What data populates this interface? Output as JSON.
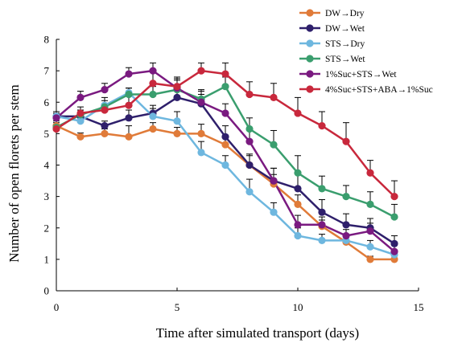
{
  "chart_data": {
    "type": "line",
    "title": "",
    "xlabel": "Time after simulated transport (days)",
    "ylabel": "Number of open florets per stem",
    "xlim": [
      0,
      15
    ],
    "ylim": [
      0,
      8
    ],
    "xticks": [
      0,
      5,
      10,
      15
    ],
    "yticks": [
      0,
      1,
      2,
      3,
      4,
      5,
      6,
      7,
      8
    ],
    "grid": false,
    "legend_position": "top-right",
    "error_bars": true,
    "series": [
      {
        "name": "DW→Dry",
        "color": "#E07B39",
        "x": [
          0,
          1,
          2,
          3,
          4,
          5,
          6,
          7,
          8,
          9,
          10,
          11,
          12,
          13,
          14
        ],
        "y": [
          5.25,
          4.9,
          5.0,
          4.9,
          5.15,
          5.0,
          5.0,
          4.65,
          4.0,
          3.4,
          2.75,
          2.05,
          1.55,
          1.0,
          1.0
        ],
        "err": [
          0.15,
          0.12,
          0.15,
          0.35,
          0.2,
          0.2,
          0.3,
          0.3,
          0.3,
          0.3,
          0.3,
          0.2,
          0.2,
          0.1,
          0.12
        ]
      },
      {
        "name": "DW→Wet",
        "color": "#2E1F6B",
        "x": [
          0,
          1,
          2,
          3,
          4,
          5,
          6,
          7,
          8,
          9,
          10,
          11,
          12,
          13,
          14
        ],
        "y": [
          5.55,
          5.55,
          5.25,
          5.5,
          5.65,
          6.15,
          5.95,
          4.9,
          4.0,
          3.5,
          3.25,
          2.5,
          2.1,
          2.0,
          1.5
        ],
        "err": [
          0.15,
          0.2,
          0.15,
          0.25,
          0.25,
          0.35,
          0.3,
          0.35,
          0.35,
          0.4,
          0.5,
          0.4,
          0.35,
          0.3,
          0.25
        ]
      },
      {
        "name": "STS→Dry",
        "color": "#6EB7DF",
        "x": [
          0,
          1,
          2,
          3,
          4,
          5,
          6,
          7,
          8,
          9,
          10,
          11,
          12,
          13,
          14
        ],
        "y": [
          5.55,
          5.4,
          5.9,
          6.3,
          5.55,
          5.4,
          4.4,
          4.0,
          3.15,
          2.5,
          1.75,
          1.6,
          1.6,
          1.4,
          1.15
        ],
        "err": [
          0.15,
          0.2,
          0.25,
          0.15,
          0.25,
          0.3,
          0.35,
          0.3,
          0.4,
          0.3,
          0.25,
          0.2,
          0.2,
          0.2,
          0.15
        ]
      },
      {
        "name": "STS→Wet",
        "color": "#3A9E6E",
        "x": [
          0,
          1,
          2,
          3,
          4,
          5,
          6,
          7,
          8,
          9,
          10,
          11,
          12,
          13,
          14
        ],
        "y": [
          5.2,
          5.6,
          5.85,
          6.25,
          6.25,
          6.4,
          6.1,
          6.5,
          5.15,
          4.65,
          3.75,
          3.25,
          3.0,
          2.75,
          2.35
        ],
        "err": [
          0.15,
          0.15,
          0.2,
          0.2,
          0.25,
          0.3,
          0.3,
          0.3,
          0.35,
          0.45,
          0.55,
          0.4,
          0.35,
          0.4,
          0.4
        ]
      },
      {
        "name": "1%Suc+STS→Wet",
        "color": "#7A1A80",
        "x": [
          0,
          1,
          2,
          3,
          4,
          5,
          6,
          7,
          8,
          9,
          10,
          11,
          12,
          13,
          14
        ],
        "y": [
          5.5,
          6.15,
          6.4,
          6.9,
          7.0,
          6.45,
          6.0,
          5.65,
          4.75,
          3.5,
          2.1,
          2.1,
          1.75,
          1.9,
          1.25
        ],
        "err": [
          0.15,
          0.2,
          0.2,
          0.2,
          0.25,
          0.3,
          0.35,
          0.3,
          0.4,
          0.4,
          0.3,
          0.25,
          0.2,
          0.25,
          0.2
        ]
      },
      {
        "name": "4%Suc+STS+ABA→1%Suc",
        "color": "#C8283C",
        "x": [
          0,
          1,
          2,
          3,
          4,
          5,
          6,
          7,
          8,
          9,
          10,
          11,
          12,
          13,
          14
        ],
        "y": [
          5.15,
          5.65,
          5.75,
          5.9,
          6.6,
          6.5,
          7.0,
          6.9,
          6.25,
          6.15,
          5.65,
          5.25,
          4.75,
          3.75,
          3.0
        ],
        "err": [
          0.15,
          0.2,
          0.2,
          0.3,
          0.35,
          0.3,
          0.25,
          0.35,
          0.4,
          0.45,
          0.5,
          0.45,
          0.6,
          0.4,
          0.5
        ]
      }
    ]
  }
}
